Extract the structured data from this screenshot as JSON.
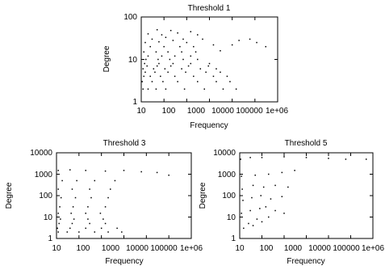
{
  "chart_data": [
    {
      "type": "scatter",
      "title": "Threshold 1",
      "xlabel": "Frequency",
      "ylabel": "Degree",
      "x_scale": "log",
      "y_scale": "log",
      "xlim": [
        10,
        10000000
      ],
      "ylim": [
        1,
        100
      ],
      "xticks": [
        "10",
        "100",
        "1000",
        "10000",
        "100000",
        "1e+06"
      ],
      "yticks": [
        "1",
        "10",
        "100"
      ],
      "series": [
        {
          "points": [
            [
              12,
              2
            ],
            [
              20,
              2
            ],
            [
              45,
              2
            ],
            [
              120,
              2
            ],
            [
              800,
              2
            ],
            [
              6000,
              2
            ],
            [
              40000,
              2
            ],
            [
              150000,
              2
            ],
            [
              11,
              3
            ],
            [
              30,
              3
            ],
            [
              90,
              3
            ],
            [
              400,
              3
            ],
            [
              3000,
              3
            ],
            [
              20000,
              3
            ],
            [
              80000,
              3
            ],
            [
              13,
              4
            ],
            [
              25,
              4
            ],
            [
              70,
              4
            ],
            [
              300,
              4
            ],
            [
              2000,
              4
            ],
            [
              15000,
              4
            ],
            [
              60000,
              4
            ],
            [
              15,
              5
            ],
            [
              40,
              5
            ],
            [
              150,
              5
            ],
            [
              900,
              5
            ],
            [
              7000,
              5
            ],
            [
              30000,
              5
            ],
            [
              12,
              6
            ],
            [
              35,
              6
            ],
            [
              110,
              6
            ],
            [
              600,
              6
            ],
            [
              4000,
              6
            ],
            [
              20000,
              6
            ],
            [
              18,
              7
            ],
            [
              50,
              7
            ],
            [
              200,
              7
            ],
            [
              1200,
              7
            ],
            [
              9000,
              7
            ],
            [
              14,
              8
            ],
            [
              60,
              8
            ],
            [
              250,
              8
            ],
            [
              1500,
              8
            ],
            [
              10000,
              8
            ],
            [
              16,
              10
            ],
            [
              55,
              10
            ],
            [
              180,
              10
            ],
            [
              700,
              10
            ],
            [
              3000,
              10
            ],
            [
              20,
              12
            ],
            [
              80,
              12
            ],
            [
              300,
              12
            ],
            [
              1500,
              12
            ],
            [
              13,
              15
            ],
            [
              45,
              15
            ],
            [
              150,
              15
            ],
            [
              600,
              15
            ],
            [
              2500,
              15
            ],
            [
              30000,
              16
            ],
            [
              25,
              20
            ],
            [
              100,
              20
            ],
            [
              500,
              20
            ],
            [
              2000,
              20
            ],
            [
              15000,
              22
            ],
            [
              15,
              25
            ],
            [
              60,
              26
            ],
            [
              250,
              28
            ],
            [
              1000,
              25
            ],
            [
              30,
              30
            ],
            [
              120,
              33
            ],
            [
              700,
              30
            ],
            [
              5000,
              30
            ],
            [
              20,
              40
            ],
            [
              80,
              38
            ],
            [
              400,
              42
            ],
            [
              3000,
              38
            ],
            [
              50,
              50
            ],
            [
              200,
              48
            ],
            [
              1500,
              45
            ],
            [
              100000,
              22
            ],
            [
              200000,
              28
            ],
            [
              600000,
              30
            ],
            [
              1200000,
              25
            ],
            [
              3000000,
              20
            ]
          ]
        }
      ]
    },
    {
      "type": "scatter",
      "title": "Threshold 3",
      "xlabel": "Frequency",
      "ylabel": "Degree",
      "x_scale": "log",
      "y_scale": "log",
      "xlim": [
        10,
        10000000
      ],
      "ylim": [
        1,
        10000
      ],
      "xticks": [
        "10",
        "100",
        "1000",
        "10000",
        "100000",
        "1e+06"
      ],
      "yticks": [
        "1",
        "10",
        "100",
        "1000",
        "10000"
      ],
      "series": [
        {
          "points": [
            [
              12,
              2
            ],
            [
              30,
              2
            ],
            [
              100,
              2
            ],
            [
              500,
              2
            ],
            [
              2000,
              2
            ],
            [
              8000,
              2
            ],
            [
              11,
              3
            ],
            [
              40,
              3
            ],
            [
              200,
              3
            ],
            [
              1000,
              3
            ],
            [
              5000,
              3
            ],
            [
              13,
              5
            ],
            [
              50,
              5
            ],
            [
              300,
              5
            ],
            [
              1500,
              5
            ],
            [
              15,
              8
            ],
            [
              60,
              8
            ],
            [
              250,
              8
            ],
            [
              1200,
              8
            ],
            [
              12,
              15
            ],
            [
              45,
              15
            ],
            [
              200,
              15
            ],
            [
              900,
              15
            ],
            [
              14,
              30
            ],
            [
              55,
              30
            ],
            [
              250,
              30
            ],
            [
              1500,
              30
            ],
            [
              16,
              80
            ],
            [
              70,
              80
            ],
            [
              350,
              80
            ],
            [
              2000,
              80
            ],
            [
              12,
              200
            ],
            [
              50,
              200
            ],
            [
              300,
              200
            ],
            [
              2500,
              200
            ],
            [
              18,
              500
            ],
            [
              80,
              500
            ],
            [
              500,
              500
            ],
            [
              4000,
              500
            ],
            [
              12,
              1500
            ],
            [
              40,
              1600
            ],
            [
              200,
              1500
            ],
            [
              1500,
              1400
            ],
            [
              10000,
              1500
            ],
            [
              60000,
              1300
            ],
            [
              300000,
              1200
            ],
            [
              1000000,
              900
            ]
          ]
        }
      ]
    },
    {
      "type": "scatter",
      "title": "Threshold 5",
      "xlabel": "Frequency",
      "ylabel": "Degree",
      "x_scale": "log",
      "y_scale": "log",
      "xlim": [
        10,
        10000000
      ],
      "ylim": [
        1,
        10000
      ],
      "xticks": [
        "10",
        "100",
        "1000",
        "10000",
        "100000",
        "1e+06"
      ],
      "yticks": [
        "1",
        "10",
        "100",
        "1000",
        "10000"
      ],
      "series": [
        {
          "points": [
            [
              15,
              3
            ],
            [
              25,
              5
            ],
            [
              40,
              4
            ],
            [
              60,
              8
            ],
            [
              100,
              6
            ],
            [
              200,
              10
            ],
            [
              12,
              15
            ],
            [
              30,
              20
            ],
            [
              80,
              25
            ],
            [
              150,
              30
            ],
            [
              400,
              20
            ],
            [
              1000,
              15
            ],
            [
              14,
              60
            ],
            [
              35,
              80
            ],
            [
              90,
              100
            ],
            [
              250,
              70
            ],
            [
              800,
              90
            ],
            [
              13,
              200
            ],
            [
              40,
              300
            ],
            [
              120,
              250
            ],
            [
              400,
              300
            ],
            [
              1500,
              250
            ],
            [
              12,
              800
            ],
            [
              50,
              900
            ],
            [
              200,
              1000
            ],
            [
              800,
              1200
            ],
            [
              3000,
              1500
            ],
            [
              11,
              5000
            ],
            [
              30,
              6000
            ],
            [
              100,
              6000
            ],
            [
              1000,
              6500
            ],
            [
              10000,
              6000
            ],
            [
              100000,
              5500
            ],
            [
              600000,
              5000
            ],
            [
              5000000,
              5000
            ]
          ]
        }
      ]
    }
  ]
}
